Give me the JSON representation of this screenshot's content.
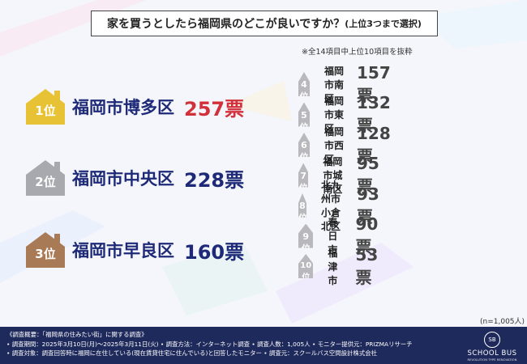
{
  "title": {
    "main": "家を買うとしたら福岡県のどこが良いですか？",
    "sub": "(上位3つまで選択)"
  },
  "note": "※全14項目中上位10項目を抜粋",
  "sample_size": "(n=1,005人)",
  "colors": {
    "gold": "#e8c235",
    "silver": "#a7a9ae",
    "bronze": "#a87a55",
    "red": "#d2303a",
    "navy": "#1e2a78",
    "rank_badge": "#b8b8bd",
    "footer_bg": "#1f2a5c"
  },
  "chart_data": {
    "type": "table",
    "unit": "票",
    "ranking": [
      {
        "rank": "1位",
        "name": "福岡市博多区",
        "votes": 257
      },
      {
        "rank": "2位",
        "name": "福岡市中央区",
        "votes": 228
      },
      {
        "rank": "3位",
        "name": "福岡市早良区",
        "votes": 160
      },
      {
        "rank": "4位",
        "name": "福岡市南区",
        "votes": 157
      },
      {
        "rank": "5位",
        "name": "福岡市東区",
        "votes": 132
      },
      {
        "rank": "6位",
        "name": "福岡市西区",
        "votes": 128
      },
      {
        "rank": "7位",
        "name": "福岡市城南区",
        "votes": 95
      },
      {
        "rank": "8位",
        "name": "北九州市小倉北区",
        "votes": 93
      },
      {
        "rank": "9位",
        "name": "春日市",
        "votes": 90
      },
      {
        "rank": "10位",
        "name": "福津市",
        "votes": 53
      }
    ]
  },
  "footer": {
    "lines": [
      "《調査概要：「福岡県の住みたい街」に関する調査》",
      "• 調査期間：2025年3月10日(月)～2025年3月11日(火)  • 調査方法：インターネット調査  • 調査人数：1,005人  • モニター提供元：PRIZMAリサーチ",
      "• 調査対象：調査回答時に福岡に在住している(現在賃貸住宅に住んでいる)と回答したモニター     • 調査元：スクールバス空間設計株式会社"
    ],
    "logo_mark": "SB",
    "logo_name": "SCHOOL BUS",
    "logo_tagline": "REVOLUTION TYPE RENOVATION"
  }
}
